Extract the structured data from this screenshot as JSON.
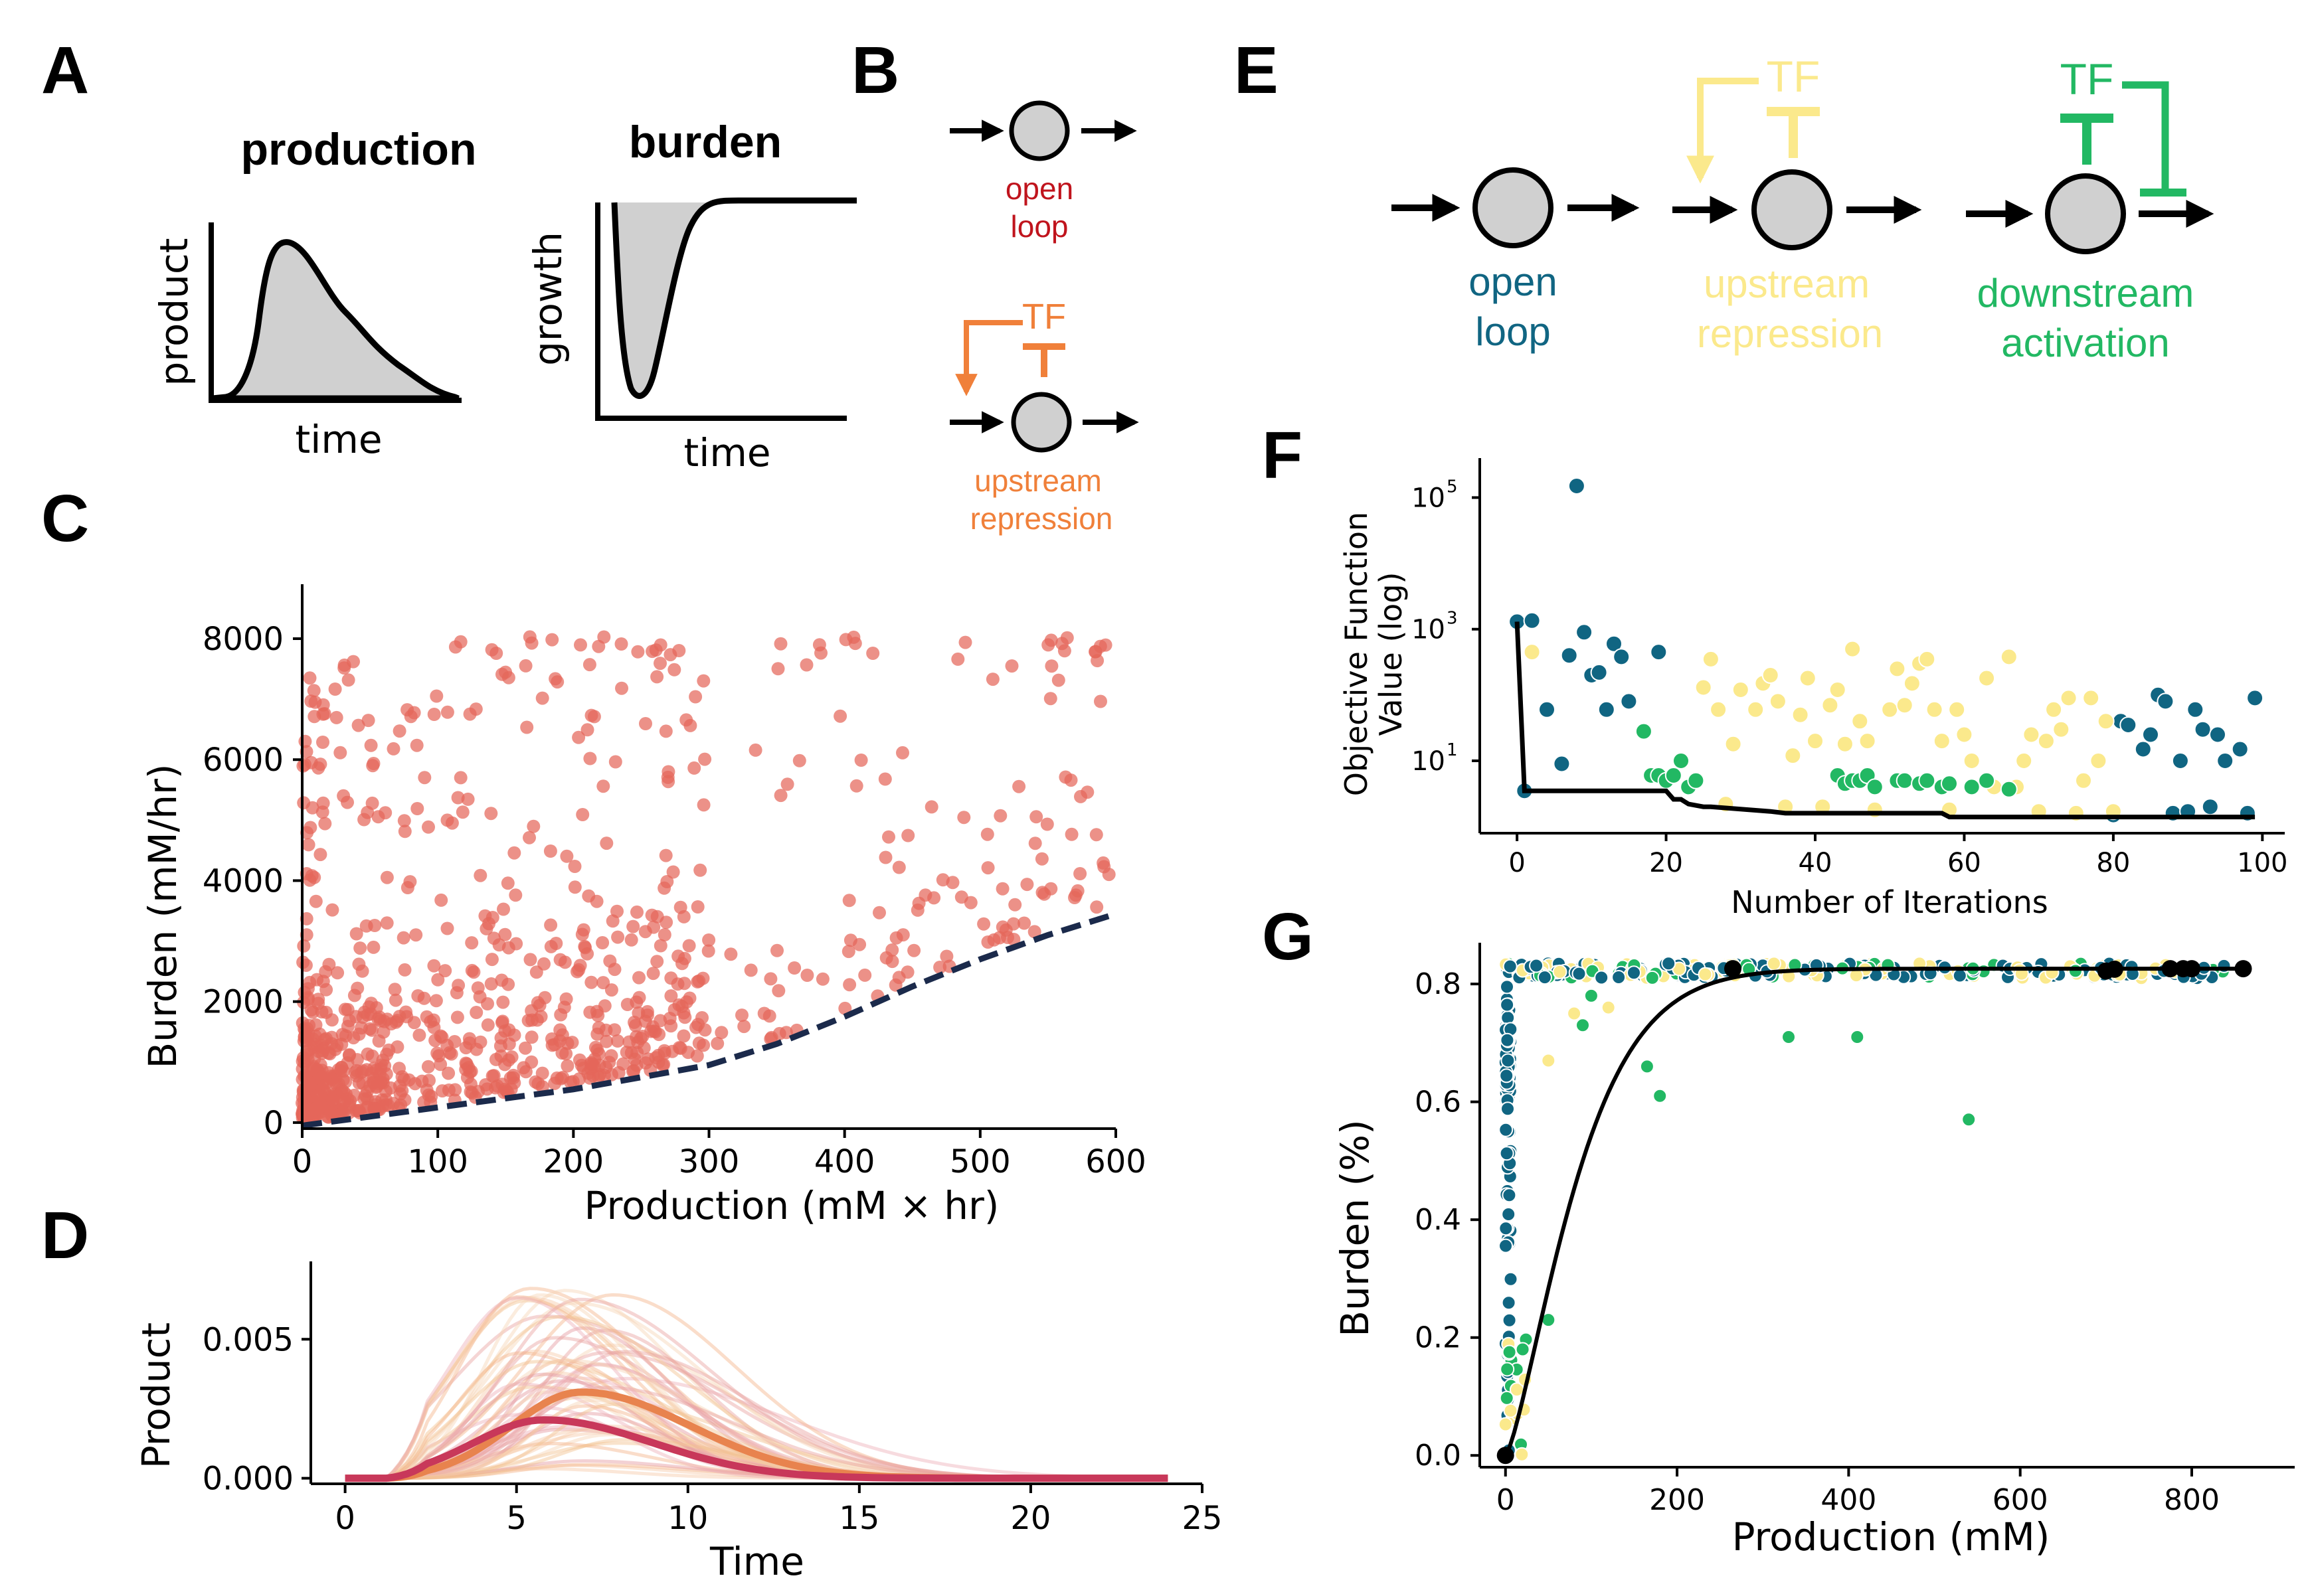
{
  "panels": {
    "A": "A",
    "B": "B",
    "C": "C",
    "D": "D",
    "E": "E",
    "F": "F",
    "G": "G"
  },
  "colors": {
    "open_loop_red": "#c0141d",
    "upstream_orange": "#f0803a",
    "open_loop_blue": "#106582",
    "upstream_yellow": "#fbe98c",
    "downstream_green": "#22b863",
    "scatter_c": "#e5665a",
    "frontier": "#1b2a4b"
  },
  "panel_a": {
    "production_title": "production",
    "burden_title": "burden",
    "product_label": "product",
    "growth_label": "growth",
    "time_label_1": "time",
    "time_label_2": "time"
  },
  "panel_b": {
    "open_label_1": "open",
    "open_label_2": "loop",
    "tf_label": "TF",
    "up_label_1": "upstream",
    "up_label_2": "repression"
  },
  "panel_e": {
    "open_label_1": "open",
    "open_label_2": "loop",
    "tf_up": "TF",
    "up_label_1": "upstream",
    "up_label_2": "repression",
    "tf_down": "TF",
    "down_label_1": "downstream",
    "down_label_2": "activation"
  },
  "chart_data": [
    {
      "panel": "C",
      "type": "scatter",
      "xlabel": "Production (mM × hr)",
      "ylabel": "Burden (mM/hr)",
      "xlim": [
        0,
        600
      ],
      "ylim": [
        -100,
        8900
      ],
      "xticks": [
        "0",
        "100",
        "200",
        "300",
        "400",
        "500",
        "600"
      ],
      "yticks": [
        "0",
        "2000",
        "4000",
        "6000",
        "8000"
      ],
      "series": [
        {
          "n_points_approx": 900
        }
      ],
      "frontier": {
        "style": "dashed",
        "x": [
          0,
          50,
          100,
          150,
          200,
          250,
          300,
          350,
          400,
          450,
          500,
          550,
          600
        ],
        "y": [
          -50,
          100,
          250,
          400,
          550,
          750,
          950,
          1300,
          1750,
          2250,
          2700,
          3100,
          3450
        ]
      }
    },
    {
      "panel": "D",
      "type": "line",
      "xlabel": "Time",
      "ylabel": "Product",
      "xlim": [
        -1,
        25
      ],
      "ylim": [
        -0.0002,
        0.0078
      ],
      "xticks": [
        "0",
        "5",
        "10",
        "15",
        "20",
        "25"
      ],
      "yticks": [
        "0.000",
        "0.005"
      ],
      "highlight_series": [
        {
          "peak_time": 6.9,
          "peak": 0.0031,
          "color": "#e8834e"
        },
        {
          "peak_time": 5.8,
          "peak": 0.0021,
          "color": "#c8385a"
        }
      ]
    },
    {
      "panel": "F",
      "type": "scatter",
      "xlabel": "Number of Iterations",
      "ylabel": "Objective Function Value (log)",
      "yscale": "log",
      "xlim": [
        -5,
        103
      ],
      "xticks": [
        "0",
        "20",
        "40",
        "60",
        "80",
        "100"
      ],
      "yticks": [
        "10",
        "10",
        "10"
      ],
      "ytick_exponents": [
        "5",
        "3",
        "1"
      ],
      "best_so_far": {
        "x": [
          0,
          1,
          20,
          21,
          22,
          23,
          25,
          26,
          34,
          36,
          57,
          58,
          99
        ],
        "y": [
          1300,
          3.5,
          3.5,
          2.6,
          2.6,
          2.2,
          2.0,
          2.0,
          1.7,
          1.6,
          1.6,
          1.4,
          1.4
        ]
      },
      "series": [
        {
          "color": "#106582",
          "points": [
            [
              0,
              1300
            ],
            [
              1,
              3.5
            ],
            [
              2,
              1350
            ],
            [
              4,
              60
            ],
            [
              6,
              9
            ],
            [
              7,
              400
            ],
            [
              8,
              150000
            ],
            [
              9,
              900
            ],
            [
              10,
              200
            ],
            [
              11,
              220
            ],
            [
              12,
              60
            ],
            [
              13,
              600
            ],
            [
              14,
              380
            ],
            [
              15,
              80
            ],
            [
              19,
              450
            ],
            [
              80,
              1.5
            ],
            [
              81,
              40
            ],
            [
              82,
              35
            ],
            [
              84,
              15
            ],
            [
              85,
              25
            ],
            [
              86,
              100
            ],
            [
              87,
              80
            ],
            [
              88,
              1.6
            ],
            [
              89,
              10
            ],
            [
              90,
              1.7
            ],
            [
              91,
              60
            ],
            [
              92,
              30
            ],
            [
              93,
              2
            ],
            [
              94,
              25
            ],
            [
              95,
              10
            ],
            [
              97,
              15
            ],
            [
              98,
              1.6
            ],
            [
              99,
              90
            ]
          ]
        },
        {
          "color": "#fbe98c",
          "points": [
            [
              2,
              450
            ],
            [
              25,
              130
            ],
            [
              26,
              350
            ],
            [
              27,
              60
            ],
            [
              28,
              2.2
            ],
            [
              29,
              18
            ],
            [
              30,
              120
            ],
            [
              32,
              60
            ],
            [
              33,
              150
            ],
            [
              34,
              200
            ],
            [
              35,
              80
            ],
            [
              36,
              2
            ],
            [
              37,
              12
            ],
            [
              38,
              50
            ],
            [
              39,
              180
            ],
            [
              40,
              20
            ],
            [
              41,
              2
            ],
            [
              42,
              70
            ],
            [
              43,
              120
            ],
            [
              44,
              18
            ],
            [
              45,
              500
            ],
            [
              46,
              40
            ],
            [
              47,
              20
            ],
            [
              48,
              1.8
            ],
            [
              50,
              60
            ],
            [
              51,
              250
            ],
            [
              52,
              70
            ],
            [
              53,
              150
            ],
            [
              54,
              300
            ],
            [
              55,
              350
            ],
            [
              56,
              60
            ],
            [
              57,
              20
            ],
            [
              58,
              1.8
            ],
            [
              59,
              60
            ],
            [
              60,
              25
            ],
            [
              61,
              10
            ],
            [
              63,
              180
            ],
            [
              64,
              4
            ],
            [
              66,
              380
            ],
            [
              67,
              4
            ],
            [
              68,
              10
            ],
            [
              69,
              25
            ],
            [
              70,
              1.7
            ],
            [
              71,
              20
            ],
            [
              72,
              60
            ],
            [
              73,
              30
            ],
            [
              74,
              90
            ],
            [
              75,
              1.6
            ],
            [
              76,
              5
            ],
            [
              77,
              90
            ],
            [
              78,
              10
            ],
            [
              79,
              40
            ],
            [
              80,
              1.7
            ]
          ]
        },
        {
          "color": "#22b863",
          "points": [
            [
              17,
              28
            ],
            [
              18,
              6
            ],
            [
              19,
              6
            ],
            [
              20,
              5
            ],
            [
              21,
              6
            ],
            [
              22,
              10
            ],
            [
              23,
              4
            ],
            [
              24,
              5
            ],
            [
              43,
              6
            ],
            [
              44,
              4.5
            ],
            [
              45,
              5
            ],
            [
              46,
              5
            ],
            [
              47,
              6
            ],
            [
              48,
              4
            ],
            [
              51,
              5
            ],
            [
              52,
              5
            ],
            [
              54,
              4.5
            ],
            [
              55,
              5
            ],
            [
              57,
              4
            ],
            [
              58,
              4.5
            ],
            [
              61,
              4
            ],
            [
              63,
              5
            ],
            [
              66,
              3.7
            ]
          ]
        }
      ]
    },
    {
      "panel": "G",
      "type": "scatter",
      "xlabel": "Production (mM)",
      "ylabel": "Burden (%)",
      "xlim": [
        -30,
        920
      ],
      "ylim": [
        -0.02,
        0.87
      ],
      "xticks": [
        "0",
        "200",
        "400",
        "600",
        "800"
      ],
      "yticks": [
        "0.0",
        "0.2",
        "0.4",
        "0.6",
        "0.8"
      ],
      "pareto_points": [
        [
          0,
          0
        ],
        [
          265,
          0.826
        ],
        [
          700,
          0.822
        ],
        [
          710,
          0.825
        ],
        [
          775,
          0.826
        ],
        [
          790,
          0.826
        ],
        [
          800,
          0.826
        ],
        [
          860,
          0.826
        ]
      ],
      "green_outliers": [
        [
          100,
          0.78
        ],
        [
          165,
          0.66
        ],
        [
          180,
          0.61
        ],
        [
          540,
          0.57
        ],
        [
          410,
          0.71
        ],
        [
          330,
          0.71
        ],
        [
          90,
          0.73
        ],
        [
          50,
          0.23
        ],
        [
          20,
          0.18
        ]
      ],
      "yellow_outliers": [
        [
          50,
          0.67
        ],
        [
          120,
          0.76
        ],
        [
          80,
          0.75
        ]
      ],
      "blue_vertical": {
        "x": 0,
        "ymin": 0.0,
        "ymax": 0.83
      }
    }
  ],
  "chart_text": {
    "c_xlabel": "Production (mM × hr)",
    "c_ylabel": "Burden (mM/hr)",
    "d_xlabel": "Time",
    "d_ylabel": "Product",
    "f_xlabel": "Number of Iterations",
    "f_ylabel_1": "Objective Function",
    "f_ylabel_2": "Value (log)",
    "g_xlabel": "Production (mM)",
    "g_ylabel": "Burden (%)"
  }
}
